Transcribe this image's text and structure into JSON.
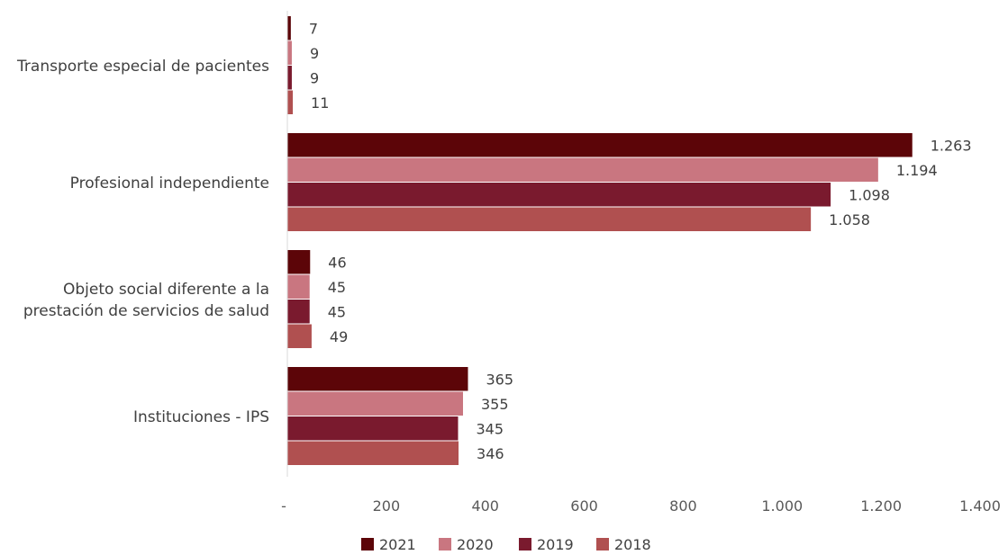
{
  "chart_data": {
    "type": "bar",
    "orientation": "horizontal",
    "categories": [
      [
        "Transporte especial de pacientes"
      ],
      [
        "Profesional independiente"
      ],
      [
        "Objeto social diferente a la",
        "prestación de servicios de salud"
      ],
      [
        "Instituciones - IPS"
      ]
    ],
    "series": [
      {
        "name": "2021",
        "color": "#5C0508",
        "values": [
          7,
          1263,
          46,
          365
        ],
        "labels": [
          "7",
          "1.263",
          "46",
          "365"
        ]
      },
      {
        "name": "2020",
        "color": "#C97680",
        "values": [
          9,
          1194,
          45,
          355
        ],
        "labels": [
          "9",
          "1.194",
          "45",
          "355"
        ]
      },
      {
        "name": "2019",
        "color": "#7A1A2E",
        "values": [
          9,
          1098,
          45,
          345
        ],
        "labels": [
          "9",
          "1.098",
          "45",
          "345"
        ]
      },
      {
        "name": "2018",
        "color": "#B05050",
        "values": [
          11,
          1058,
          49,
          346
        ],
        "labels": [
          "11",
          "1.058",
          "49",
          "346"
        ]
      }
    ],
    "xlim": [
      0,
      1400
    ],
    "x_ticks": [
      {
        "value": 0,
        "label": "-"
      },
      {
        "value": 200,
        "label": "200"
      },
      {
        "value": 400,
        "label": "400"
      },
      {
        "value": 600,
        "label": "600"
      },
      {
        "value": 800,
        "label": "800"
      },
      {
        "value": 1000,
        "label": "1.000"
      },
      {
        "value": 1200,
        "label": "1.200"
      },
      {
        "value": 1400,
        "label": "1.400"
      }
    ],
    "grid": false,
    "legend_position": "bottom"
  }
}
